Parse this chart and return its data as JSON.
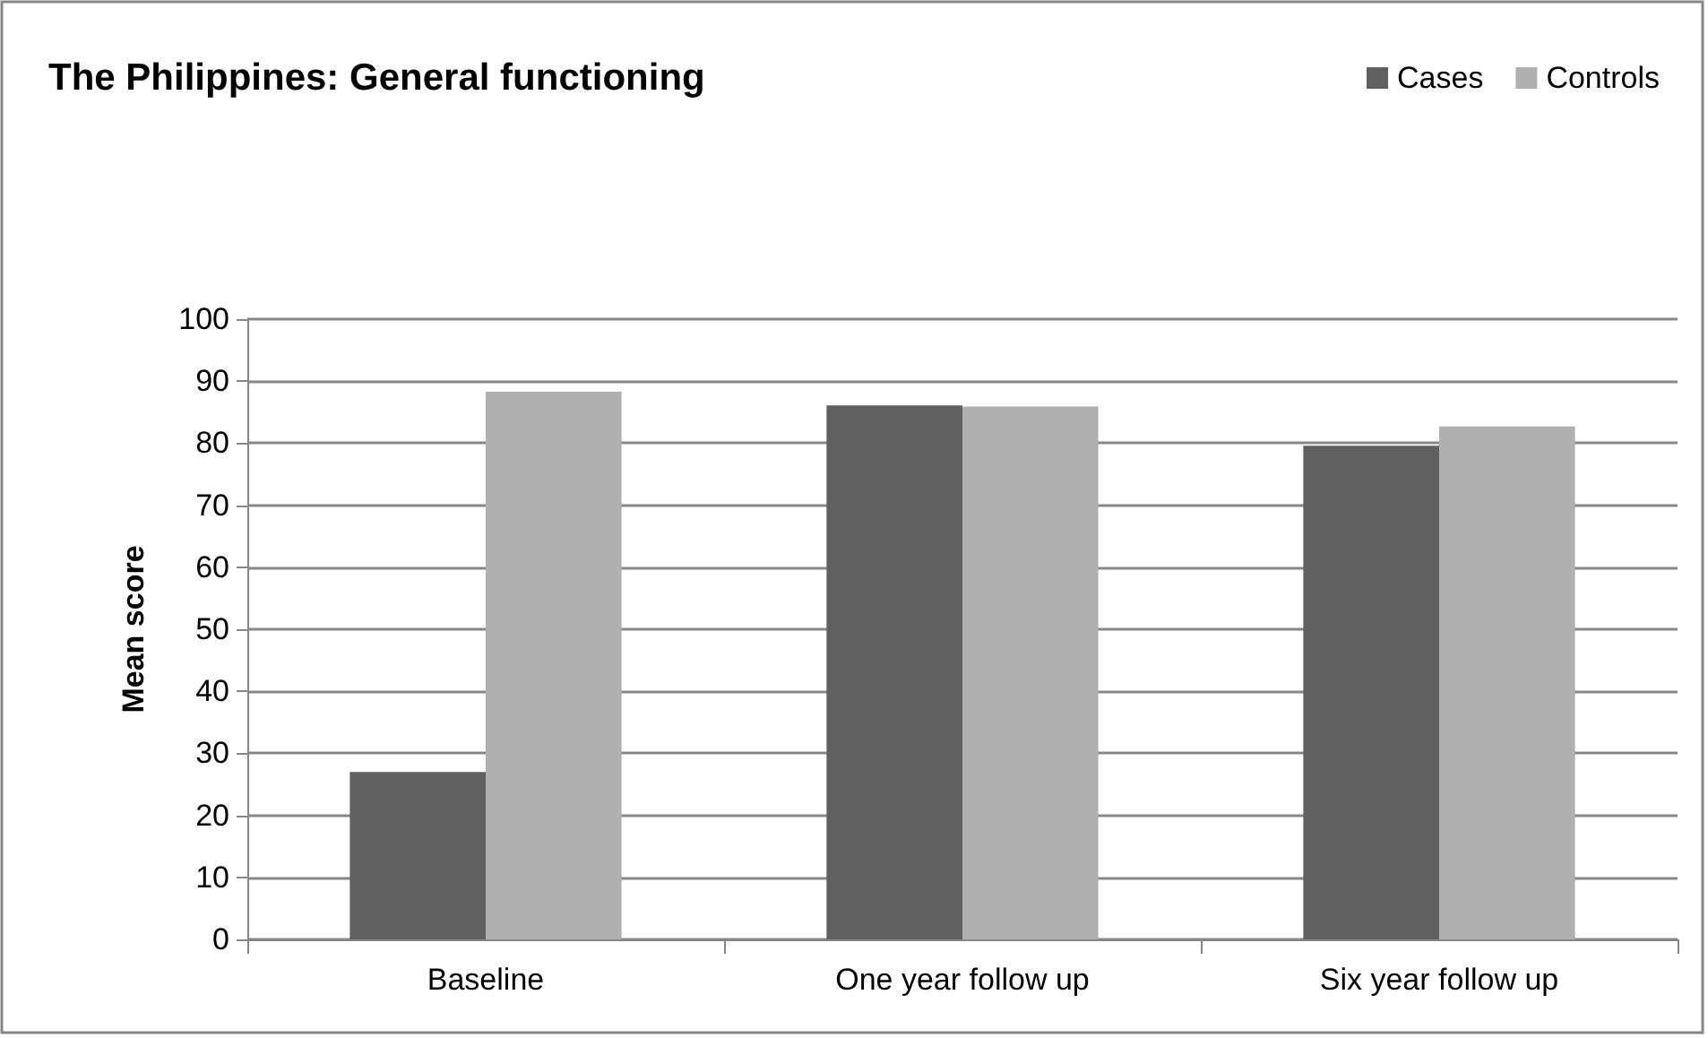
{
  "chart_data": {
    "type": "bar",
    "title": "The Philippines: General functioning",
    "ylabel": "Mean score",
    "categories": [
      "Baseline",
      "One year follow up",
      "Six year follow up"
    ],
    "series": [
      {
        "name": "Cases",
        "color": "#606060",
        "values": [
          27,
          86.1,
          79.6
        ]
      },
      {
        "name": "Controls",
        "color": "#b0b0b0",
        "values": [
          88.3,
          85.9,
          82.7
        ]
      }
    ],
    "ylim": [
      0,
      100
    ],
    "yticks": [
      0,
      10,
      20,
      30,
      40,
      50,
      60,
      70,
      80,
      90,
      100
    ],
    "grid": "y",
    "legend": "top right"
  }
}
